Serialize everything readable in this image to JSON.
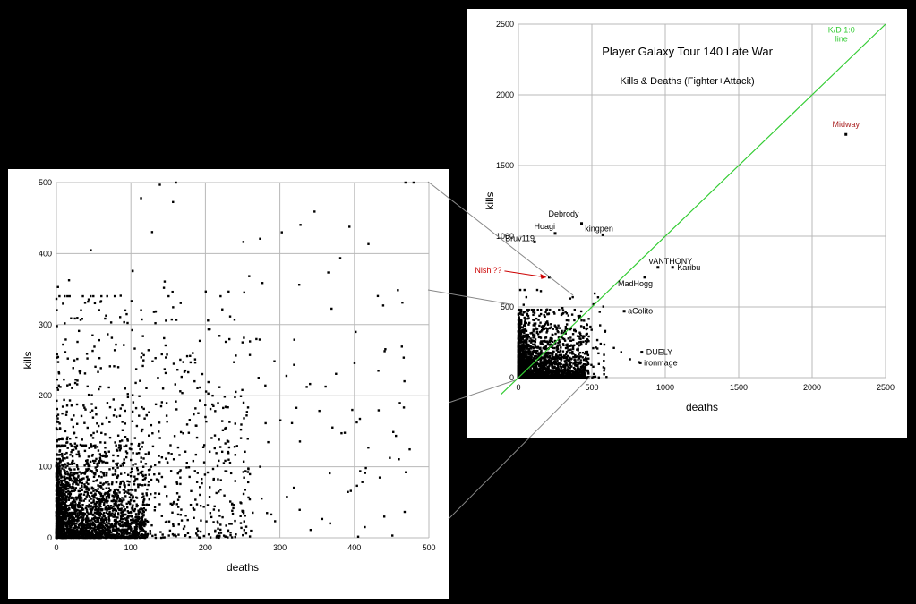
{
  "chart_data": [
    {
      "type": "scatter",
      "title": "Player Galaxy Tour 140 Late War",
      "subtitle": "Kills & Deaths (Fighter+Attack)",
      "xlabel": "deaths",
      "ylabel": "kills",
      "xlim": [
        0,
        2500
      ],
      "ylim": [
        0,
        2500
      ],
      "xticks": [
        "0",
        "500",
        "1000",
        "1500",
        "2000",
        "2500"
      ],
      "yticks": [
        "0",
        "500",
        "1000",
        "1500",
        "2000",
        "2500"
      ],
      "grid": true,
      "reference_line": {
        "label_line1": "K/D 1:0",
        "label_line2": "line",
        "color": "#33cc33",
        "from": [
          -120,
          -120
        ],
        "to": [
          2500,
          2500
        ]
      },
      "point_color": "#000000",
      "labeled_points": [
        {
          "label": "Midway",
          "x": 2230,
          "y": 1720,
          "color": "#aa2222"
        },
        {
          "label": "Debrody",
          "x": 430,
          "y": 1090,
          "color": "#000000"
        },
        {
          "label": "Hoagi",
          "x": 250,
          "y": 1020,
          "color": "#000000"
        },
        {
          "label": "kingpen",
          "x": 575,
          "y": 1010,
          "color": "#000000"
        },
        {
          "label": "Bruv119",
          "x": 110,
          "y": 960,
          "color": "#000000"
        },
        {
          "label": "vANTHONY",
          "x": 950,
          "y": 780,
          "color": "#000000"
        },
        {
          "label": "Karibu",
          "x": 1050,
          "y": 780,
          "color": "#000000"
        },
        {
          "label": "MadHogg",
          "x": 860,
          "y": 710,
          "color": "#000000"
        },
        {
          "label": "aColito",
          "x": 720,
          "y": 470,
          "color": "#000000"
        },
        {
          "label": "DUELY",
          "x": 840,
          "y": 180,
          "color": "#000000"
        },
        {
          "label": "ironmage",
          "x": 830,
          "y": 105,
          "color": "#000000"
        }
      ],
      "annotation": {
        "label": "Nishi??",
        "x": 210,
        "y": 710,
        "color": "#cc0000"
      }
    },
    {
      "type": "scatter",
      "title": "",
      "xlabel": "deaths",
      "ylabel": "kills",
      "xlim": [
        0,
        500
      ],
      "ylim": [
        0,
        500
      ],
      "xticks": [
        "0",
        "100",
        "200",
        "300",
        "400",
        "500"
      ],
      "yticks": [
        "0",
        "100",
        "200",
        "300",
        "400",
        "500"
      ],
      "grid": true,
      "point_color": "#000000",
      "points_note": "dense cloud of several thousand players, most below 150 deaths and 150 kills"
    }
  ]
}
